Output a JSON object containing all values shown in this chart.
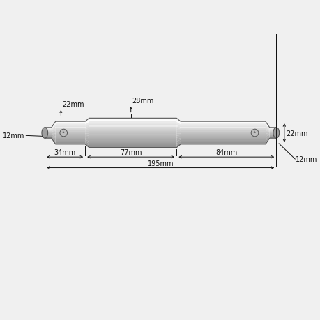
{
  "bg_color": "#f0f0f0",
  "edge_col": "#555555",
  "dim_color": "#111111",
  "label_total": "195mm",
  "label_s1": "34mm",
  "label_s2": "77mm",
  "label_s3": "84mm",
  "label_d_end_left": "12mm",
  "label_d_small": "22mm",
  "label_d_large": "28mm",
  "label_d_right_small": "22mm",
  "label_d_right_end": "12mm",
  "grad_colors": [
    "#f5f5f5",
    "#ebebeb",
    "#dedede",
    "#d0d0d0",
    "#c0c0c0",
    "#b0b0b0",
    "#a0a0a0",
    "#909090",
    "#808080"
  ],
  "grad_dark": [
    "#e8e8e8",
    "#d8d8d8",
    "#c8c8c8",
    "#b8b8b8",
    "#a8a8a8",
    "#989898",
    "#888888"
  ],
  "end_cap_col": "#c0c0c0",
  "taper_cols": [
    "#e0e0e0",
    "#d0d0d0",
    "#c0c0c0",
    "#b0b0b0"
  ],
  "screw_col": "#d0d0d0",
  "fontsize": 7,
  "lw_dim": 0.7,
  "lw_pin": 0.8
}
